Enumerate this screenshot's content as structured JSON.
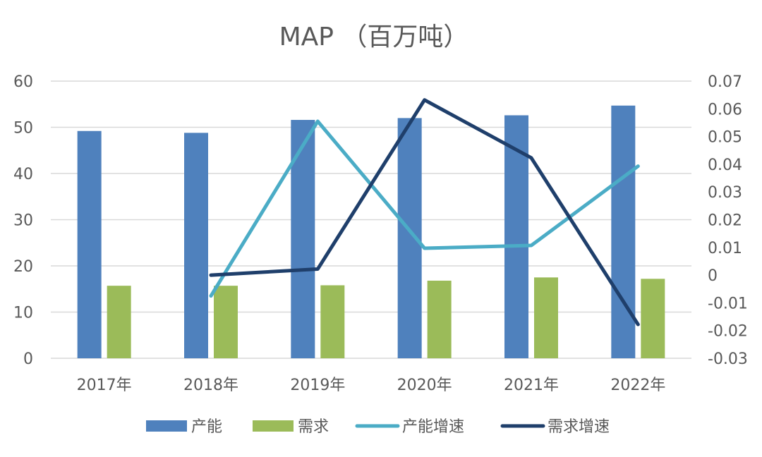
{
  "chart_data": {
    "type": "bar",
    "title": "MAP （百万吨）",
    "categories": [
      "2017年",
      "2018年",
      "2019年",
      "2020年",
      "2021年",
      "2022年"
    ],
    "series": [
      {
        "name": "产能",
        "type": "bar",
        "axis": "left",
        "color": "#4f81bd",
        "values": [
          49.2,
          48.8,
          51.6,
          52.0,
          52.6,
          54.7
        ]
      },
      {
        "name": "需求",
        "type": "bar",
        "axis": "left",
        "color": "#9bbb59",
        "values": [
          15.7,
          15.7,
          15.8,
          16.8,
          17.5,
          17.2
        ]
      },
      {
        "name": "产能增速",
        "type": "line",
        "axis": "right",
        "color": "#4bacc6",
        "values": [
          null,
          -0.0075,
          0.0555,
          0.0097,
          0.0107,
          0.0393
        ]
      },
      {
        "name": "需求增速",
        "type": "line",
        "axis": "right",
        "color": "#1f3f6b",
        "values": [
          null,
          0.0,
          0.0022,
          0.0632,
          0.0423,
          -0.0178
        ]
      }
    ],
    "y_left": {
      "min": 0,
      "max": 60,
      "ticks": [
        "0",
        "10",
        "20",
        "30",
        "40",
        "50",
        "60"
      ]
    },
    "y_right": {
      "min": -0.03,
      "max": 0.07,
      "ticks": [
        "-0.03",
        "-0.02",
        "-0.01",
        "0",
        "0.01",
        "0.02",
        "0.03",
        "0.04",
        "0.05",
        "0.06",
        "0.07"
      ]
    },
    "grid": true,
    "legend_position": "bottom",
    "gridline_color": "#d9d9d9"
  }
}
